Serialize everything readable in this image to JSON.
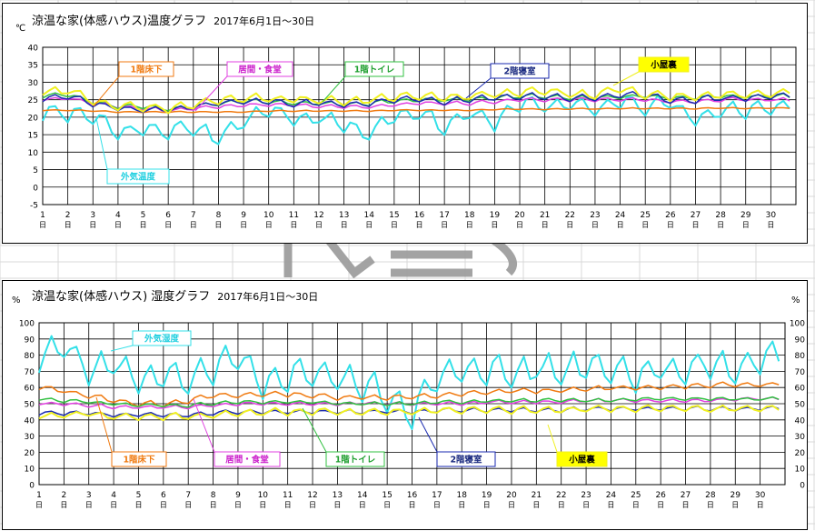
{
  "charts": [
    {
      "title": "涼温な家(体感ハウス)温度グラフ",
      "period": "2017年6月1日～30日",
      "yunit_left": "℃"
    },
    {
      "title": "涼温な家(体感ハウス) 湿度グラフ",
      "period": "2017年6月1日～30日",
      "yunit_left": "%",
      "yunit_right": "%"
    }
  ],
  "chart_data": [
    {
      "type": "line",
      "title": "涼温な家(体感ハウス)温度グラフ 2017年6月1日～30日",
      "ylabel": "℃",
      "ylim": [
        -5,
        40
      ],
      "yticks": [
        -5,
        0,
        5,
        10,
        15,
        20,
        25,
        30,
        35,
        40
      ],
      "xlim": [
        1,
        31
      ],
      "x_tick_labels": [
        "1",
        "2",
        "3",
        "4",
        "5",
        "6",
        "7",
        "8",
        "9",
        "10",
        "11",
        "12",
        "13",
        "14",
        "15",
        "16",
        "17",
        "18",
        "19",
        "20",
        "21",
        "22",
        "23",
        "24",
        "25",
        "26",
        "27",
        "28",
        "29",
        "30"
      ],
      "x_tick_suffix": "日",
      "grid": true,
      "series": [
        {
          "name": "外気温度",
          "color": "#33e0e8",
          "label_color": "#22d0e0",
          "label_bg": "#ffffff",
          "width": 2,
          "values": [
            21.5,
            21,
            20.2,
            15.5,
            16.5,
            16,
            17,
            14,
            19,
            23,
            19,
            20,
            18,
            15,
            20,
            21,
            17,
            22,
            18,
            24,
            23,
            24,
            22,
            25,
            23,
            24,
            19,
            22,
            22,
            22.5
          ],
          "var": 4.5,
          "seed": 3
        },
        {
          "name": "1階床下",
          "color": "#f07a10",
          "label_color": "#f07a10",
          "label_bg": "#ffffff",
          "width": 1.5,
          "values": [
            22,
            22,
            21.8,
            21.5,
            21.5,
            21.5,
            21.5,
            21.5,
            21.5,
            21.8,
            21.8,
            21.8,
            21.8,
            21.8,
            22,
            22,
            22,
            22,
            22.2,
            22.3,
            22.3,
            22.4,
            22.4,
            22.5,
            22.5,
            22.5,
            22.5,
            22.6,
            22.6,
            22.6
          ],
          "var": 0.3,
          "seed": 7
        },
        {
          "name": "居間・食堂",
          "color": "#e040e0",
          "label_color": "#cc20cc",
          "label_bg": "#ffffff",
          "width": 1.5,
          "values": [
            25,
            25.5,
            24,
            23,
            22.5,
            22,
            22.5,
            23,
            23.5,
            23.5,
            23.5,
            23,
            23,
            23,
            23.5,
            24,
            24,
            24,
            24.5,
            25,
            25,
            25,
            25,
            25,
            25,
            24.5,
            24.5,
            25,
            25,
            25
          ],
          "var": 1,
          "seed": 11
        },
        {
          "name": "1階トイレ",
          "color": "#30c040",
          "label_color": "#20a030",
          "label_bg": "#ffffff",
          "width": 1.5,
          "values": [
            26,
            26.5,
            24.5,
            23,
            23,
            22.5,
            23,
            24,
            24.5,
            24.5,
            24,
            24,
            23.5,
            24,
            24.5,
            25,
            25,
            25,
            25.5,
            26,
            26,
            25.5,
            25.5,
            26,
            26,
            25.5,
            25.5,
            26,
            26,
            26
          ],
          "var": 1.2,
          "seed": 19
        },
        {
          "name": "2階寝室",
          "color": "#1a2ab0",
          "label_color": "#1a2a80",
          "label_bg": "#ffffff",
          "width": 1.5,
          "values": [
            25,
            26,
            24,
            22.5,
            22,
            22,
            23,
            24,
            24.5,
            24.5,
            24,
            24,
            23.5,
            24,
            25,
            25,
            24.5,
            25,
            25.5,
            26,
            26,
            25.5,
            25.5,
            26.5,
            26,
            25,
            25,
            25.5,
            25.5,
            26
          ],
          "var": 1.8,
          "seed": 23
        },
        {
          "name": "小屋裏",
          "color": "#f0f020",
          "label_color": "#000000",
          "label_bg": "#ffff00",
          "width": 2,
          "values": [
            27,
            27.5,
            25,
            23,
            23,
            22.5,
            23.5,
            25,
            25.5,
            25.5,
            25,
            25,
            24.5,
            25,
            26,
            26,
            25.5,
            26,
            26.5,
            27,
            27.5,
            26.5,
            26.5,
            28,
            26.5,
            26,
            25.5,
            26.5,
            26.5,
            27
          ],
          "var": 2.2,
          "seed": 29
        }
      ]
    },
    {
      "type": "line",
      "title": "涼温な家(体感ハウス) 湿度グラフ 2017年6月1日～30日",
      "ylabel": "%",
      "ylim": [
        0,
        100
      ],
      "yticks": [
        0,
        10,
        20,
        30,
        40,
        50,
        60,
        70,
        80,
        90,
        100
      ],
      "xlim": [
        1,
        31
      ],
      "x_tick_labels": [
        "1",
        "2",
        "3",
        "4",
        "5",
        "6",
        "7",
        "8",
        "9",
        "10",
        "11",
        "12",
        "13",
        "14",
        "15",
        "16",
        "17",
        "18",
        "19",
        "20",
        "21",
        "22",
        "23",
        "24",
        "25",
        "26",
        "27",
        "28",
        "29",
        "30"
      ],
      "x_tick_suffix": "日",
      "grid": true,
      "series": [
        {
          "name": "外気湿度",
          "color": "#33e0e8",
          "label_color": "#22d0e0",
          "label_bg": "#ffffff",
          "width": 2,
          "values": [
            75,
            88,
            70,
            75,
            65,
            68,
            62,
            72,
            78,
            60,
            68,
            70,
            65,
            62,
            55,
            45,
            65,
            70,
            72,
            68,
            72,
            70,
            75,
            72,
            68,
            72,
            70,
            75,
            70,
            78
          ],
          "var": 18,
          "seed": 5
        },
        {
          "name": "1階床下",
          "color": "#f07a10",
          "label_color": "#f07a10",
          "label_bg": "#ffffff",
          "width": 1.5,
          "values": [
            60,
            58,
            55,
            52,
            50,
            50,
            52,
            55,
            55,
            56,
            56,
            55,
            54,
            54,
            54,
            54,
            55,
            56,
            57,
            58,
            58,
            58,
            59,
            60,
            60,
            60,
            61,
            61,
            62,
            62
          ],
          "var": 3,
          "seed": 13
        },
        {
          "name": "居間・食堂",
          "color": "#e040e0",
          "label_color": "#cc20cc",
          "label_bg": "#ffffff",
          "width": 1.5,
          "values": [
            50,
            50,
            49,
            48,
            48,
            48,
            48,
            49,
            50,
            50,
            50,
            50,
            50,
            50,
            50,
            50,
            50,
            50,
            51,
            51,
            51,
            51,
            52,
            52,
            52,
            52,
            52,
            52,
            53,
            53
          ],
          "var": 2,
          "seed": 17
        },
        {
          "name": "1階トイレ",
          "color": "#30c040",
          "label_color": "#20a030",
          "label_bg": "#ffffff",
          "width": 1.5,
          "values": [
            53,
            52,
            51,
            50,
            49,
            49,
            49,
            50,
            51,
            51,
            51,
            51,
            50,
            50,
            50,
            50,
            51,
            51,
            52,
            52,
            52,
            52,
            52,
            52,
            53,
            53,
            53,
            53,
            53,
            53
          ],
          "var": 2,
          "seed": 31
        },
        {
          "name": "2階寝室",
          "color": "#1a2ab0",
          "label_color": "#1a2a80",
          "label_bg": "#ffffff",
          "width": 1.5,
          "values": [
            44,
            44,
            44,
            43,
            43,
            43,
            43,
            44,
            45,
            45,
            45,
            45,
            45,
            45,
            45,
            45,
            46,
            46,
            46,
            46,
            46,
            46,
            47,
            47,
            47,
            47,
            47,
            47,
            47,
            47
          ],
          "var": 2.5,
          "seed": 37
        },
        {
          "name": "小屋裏",
          "color": "#f0f020",
          "label_color": "#000000",
          "label_bg": "#ffff00",
          "width": 2,
          "values": [
            42,
            43,
            44,
            42,
            42,
            42,
            42,
            43,
            44,
            45,
            45,
            45,
            45,
            45,
            45,
            45,
            46,
            46,
            46,
            46,
            46,
            46,
            47,
            47,
            47,
            47,
            47,
            47,
            47,
            47
          ],
          "var": 4,
          "seed": 41
        }
      ]
    }
  ]
}
